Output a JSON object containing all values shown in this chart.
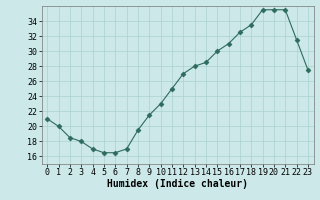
{
  "x": [
    0,
    1,
    2,
    3,
    4,
    5,
    6,
    7,
    8,
    9,
    10,
    11,
    12,
    13,
    14,
    15,
    16,
    17,
    18,
    19,
    20,
    21,
    22,
    23
  ],
  "y": [
    21,
    20,
    18.5,
    18,
    17,
    16.5,
    16.5,
    17,
    19.5,
    21.5,
    23,
    25,
    27,
    28,
    28.5,
    30,
    31,
    32.5,
    33.5,
    35.5,
    35.5,
    35.5,
    31.5,
    27.5
  ],
  "xlabel": "Humidex (Indice chaleur)",
  "xlim": [
    -0.5,
    23.5
  ],
  "ylim": [
    15,
    36
  ],
  "yticks": [
    16,
    18,
    20,
    22,
    24,
    26,
    28,
    30,
    32,
    34
  ],
  "xticks": [
    0,
    1,
    2,
    3,
    4,
    5,
    6,
    7,
    8,
    9,
    10,
    11,
    12,
    13,
    14,
    15,
    16,
    17,
    18,
    19,
    20,
    21,
    22,
    23
  ],
  "line_color": "#2d6b5e",
  "marker": "D",
  "marker_size": 2.5,
  "bg_color": "#cce8e8",
  "grid_color": "#aad0d0",
  "tick_fontsize": 6,
  "xlabel_fontsize": 7
}
